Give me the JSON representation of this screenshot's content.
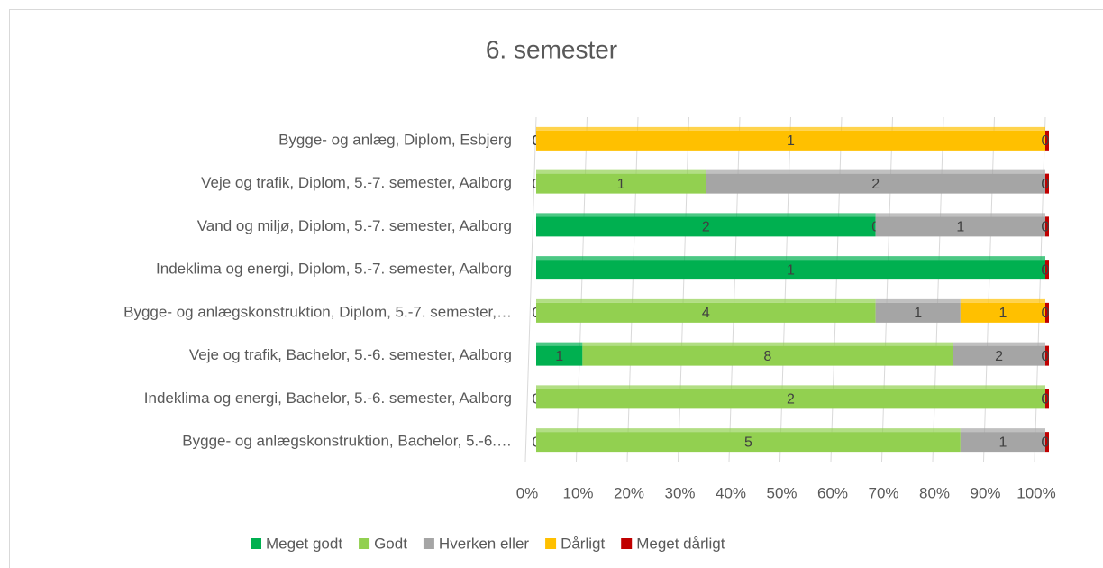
{
  "chart_data": {
    "type": "bar",
    "orientation": "horizontal",
    "stacked": "percent",
    "title": "6. semester",
    "categories": [
      "Bygge- og anlæg, Diplom, Esbjerg",
      "Veje og trafik, Diplom, 5.-7. semester, Aalborg",
      "Vand og miljø, Diplom, 5.-7. semester, Aalborg",
      "Indeklima og energi, Diplom, 5.-7. semester, Aalborg",
      "Bygge- og anlægskonstruktion, Diplom, 5.-7. semester,…",
      "Veje og trafik, Bachelor, 5.-6. semester, Aalborg",
      "Indeklima og energi, Bachelor, 5.-6. semester, Aalborg",
      "Bygge- og anlægskonstruktion, Bachelor, 5.-6.…"
    ],
    "series": [
      {
        "name": "Meget godt",
        "color": "#00b050",
        "values": [
          0,
          0,
          2,
          1,
          0,
          1,
          0,
          0
        ]
      },
      {
        "name": "Godt",
        "color": "#92d050",
        "values": [
          0,
          1,
          0,
          0,
          4,
          8,
          2,
          5
        ]
      },
      {
        "name": "Hverken eller",
        "color": "#a5a5a5",
        "values": [
          0,
          2,
          1,
          0,
          1,
          2,
          0,
          1
        ]
      },
      {
        "name": "Dårligt",
        "color": "#ffc000",
        "values": [
          1,
          0,
          0,
          0,
          1,
          0,
          0,
          0
        ]
      },
      {
        "name": "Meget dårligt",
        "color": "#c00000",
        "values": [
          0,
          0,
          0,
          0,
          0,
          0,
          0,
          0
        ]
      }
    ],
    "xlim": [
      0,
      100
    ],
    "xticks": [
      {
        "value": 0,
        "label": "0%"
      },
      {
        "value": 10,
        "label": "10%"
      },
      {
        "value": 20,
        "label": "20%"
      },
      {
        "value": 30,
        "label": "30%"
      },
      {
        "value": 40,
        "label": "40%"
      },
      {
        "value": 50,
        "label": "50%"
      },
      {
        "value": 60,
        "label": "60%"
      },
      {
        "value": 70,
        "label": "70%"
      },
      {
        "value": 80,
        "label": "80%"
      },
      {
        "value": 90,
        "label": "90%"
      },
      {
        "value": 100,
        "label": "100%"
      }
    ],
    "grid": true,
    "legend": "bottom"
  }
}
